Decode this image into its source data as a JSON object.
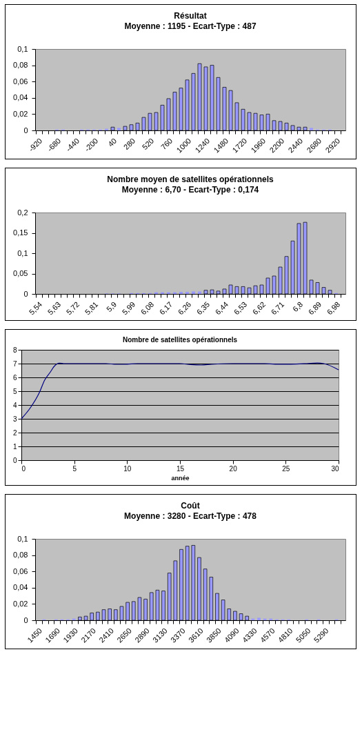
{
  "chart_data": [
    {
      "type": "bar",
      "title": "Résultat",
      "subtitle": "Moyenne : 1195  -  Ecart-Type : 487",
      "color": "#9999ff",
      "categories": [
        "-920",
        null,
        null,
        "-680",
        null,
        null,
        "-440",
        null,
        null,
        "-200",
        null,
        null,
        "40",
        null,
        null,
        "280",
        null,
        null,
        "520",
        null,
        null,
        "760",
        null,
        null,
        "1000",
        null,
        null,
        "1240",
        null,
        null,
        "1480",
        null,
        null,
        "1720",
        null,
        null,
        "1960",
        null,
        null,
        "2200",
        null,
        null,
        "2440",
        null,
        null,
        "2680",
        null,
        null,
        "2920",
        null
      ],
      "values": [
        0,
        0,
        0,
        0.001,
        0.001,
        0,
        0,
        0.001,
        0.001,
        0.001,
        0.001,
        0.002,
        0.004,
        0.003,
        0.005,
        0.007,
        0.009,
        0.016,
        0.021,
        0.022,
        0.031,
        0.039,
        0.047,
        0.052,
        0.062,
        0.07,
        0.082,
        0.078,
        0.08,
        0.065,
        0.053,
        0.049,
        0.034,
        0.026,
        0.022,
        0.021,
        0.019,
        0.02,
        0.012,
        0.011,
        0.009,
        0.006,
        0.004,
        0.004,
        0.003,
        0.001,
        0.001,
        0.001,
        0,
        0
      ],
      "ylim": [
        0,
        0.1
      ],
      "yticks": [
        0,
        {
          "value": 0.02,
          "label": "0,02"
        },
        {
          "value": 0.04,
          "label": "0,04"
        },
        {
          "value": 0.06,
          "label": "0,06"
        },
        {
          "value": 0.08,
          "label": "0,08"
        },
        {
          "value": 0.1,
          "label": "0,1"
        }
      ]
    },
    {
      "type": "bar",
      "title": "Nombre moyen de satellites opérationnels",
      "subtitle": "Moyenne : 6,70  -  Ecart-Type : 0,174",
      "color": "#9999ff",
      "categories": [
        "5,54",
        null,
        null,
        "5,63",
        null,
        null,
        "5,72",
        null,
        null,
        "5,81",
        null,
        null,
        "5,9",
        null,
        null,
        "5,99",
        null,
        null,
        "6,08",
        null,
        null,
        "6,17",
        null,
        null,
        "6,26",
        null,
        null,
        "6,35",
        null,
        null,
        "6,44",
        null,
        null,
        "6,53",
        null,
        null,
        "6,62",
        null,
        null,
        "6,71",
        null,
        null,
        "6,8",
        null,
        null,
        "6,89",
        null,
        null,
        "6,98",
        null
      ],
      "values": [
        0,
        0,
        0,
        0,
        0,
        0,
        0,
        0,
        0,
        0,
        0,
        0.001,
        0.001,
        0.001,
        0,
        0.002,
        0.002,
        0.002,
        0.002,
        0.004,
        0.004,
        0.004,
        0.004,
        0.005,
        0.005,
        0.006,
        0.006,
        0.009,
        0.01,
        0.007,
        0.012,
        0.022,
        0.018,
        0.018,
        0.015,
        0.02,
        0.022,
        0.039,
        0.044,
        0.066,
        0.092,
        0.13,
        0.173,
        0.176,
        0.034,
        0.028,
        0.016,
        0.009,
        0.002,
        0
      ],
      "ylim": [
        0,
        0.2
      ],
      "yticks": [
        0,
        {
          "value": 0.05,
          "label": "0,05"
        },
        {
          "value": 0.1,
          "label": "0,1"
        },
        {
          "value": 0.15,
          "label": "0,15"
        },
        {
          "value": 0.2,
          "label": "0,2"
        }
      ]
    },
    {
      "type": "line",
      "title": "Nombre de satellites opérationnels",
      "xlabel": "année",
      "color": "#000080",
      "grid": "y",
      "x": [
        0,
        0.85,
        1.7,
        2.2,
        2.75,
        3.1,
        3.6,
        4,
        8,
        9,
        10,
        11,
        15,
        16,
        17,
        18,
        20,
        23,
        24,
        25.5,
        27,
        28,
        28.6,
        30
      ],
      "values": [
        3,
        3.8,
        4.9,
        5.8,
        6.4,
        6.8,
        7.03,
        7,
        7,
        6.95,
        6.96,
        7,
        7,
        6.93,
        6.9,
        6.95,
        7,
        7,
        6.96,
        6.96,
        7,
        7.04,
        7,
        6.55
      ],
      "xlim": [
        0,
        30
      ],
      "xticks": [
        0,
        5,
        10,
        15,
        20,
        25,
        30
      ],
      "ylim": [
        0,
        8
      ],
      "yticks": [
        0,
        1,
        2,
        3,
        4,
        5,
        6,
        7,
        8
      ]
    },
    {
      "type": "bar",
      "title": "Coût",
      "subtitle": "Moyenne : 3280  -  Ecart-Type : 478",
      "color": "#9999ff",
      "categories": [
        "1450",
        null,
        null,
        "1690",
        null,
        null,
        "1930",
        null,
        null,
        "2170",
        null,
        null,
        "2410",
        null,
        null,
        "2650",
        null,
        null,
        "2890",
        null,
        null,
        "3130",
        null,
        null,
        "3370",
        null,
        null,
        "3610",
        null,
        null,
        "3850",
        null,
        null,
        "4090",
        null,
        null,
        "4330",
        null,
        null,
        "4570",
        null,
        null,
        "4810",
        null,
        null,
        "5050",
        null,
        null,
        "5290",
        null,
        null,
        null
      ],
      "values": [
        0,
        0.001,
        0,
        0.001,
        0.001,
        0.001,
        0.002,
        0.004,
        0.005,
        0.009,
        0.01,
        0.013,
        0.014,
        0.013,
        0.017,
        0.022,
        0.023,
        0.028,
        0.026,
        0.034,
        0.037,
        0.036,
        0.058,
        0.073,
        0.087,
        0.091,
        0.092,
        0.077,
        0.063,
        0.053,
        0.033,
        0.025,
        0.014,
        0.011,
        0.008,
        0.005,
        0.002,
        0.003,
        0.002,
        0.002,
        0.001,
        0.001,
        0.001,
        0,
        0,
        0.001,
        0,
        0.001,
        0,
        0,
        0.001,
        0
      ],
      "ylim": [
        0,
        0.1
      ],
      "yticks": [
        0,
        {
          "value": 0.02,
          "label": "0,02"
        },
        {
          "value": 0.04,
          "label": "0,04"
        },
        {
          "value": 0.06,
          "label": "0,06"
        },
        {
          "value": 0.08,
          "label": "0,08"
        },
        {
          "value": 0.1,
          "label": "0,1"
        }
      ]
    }
  ]
}
